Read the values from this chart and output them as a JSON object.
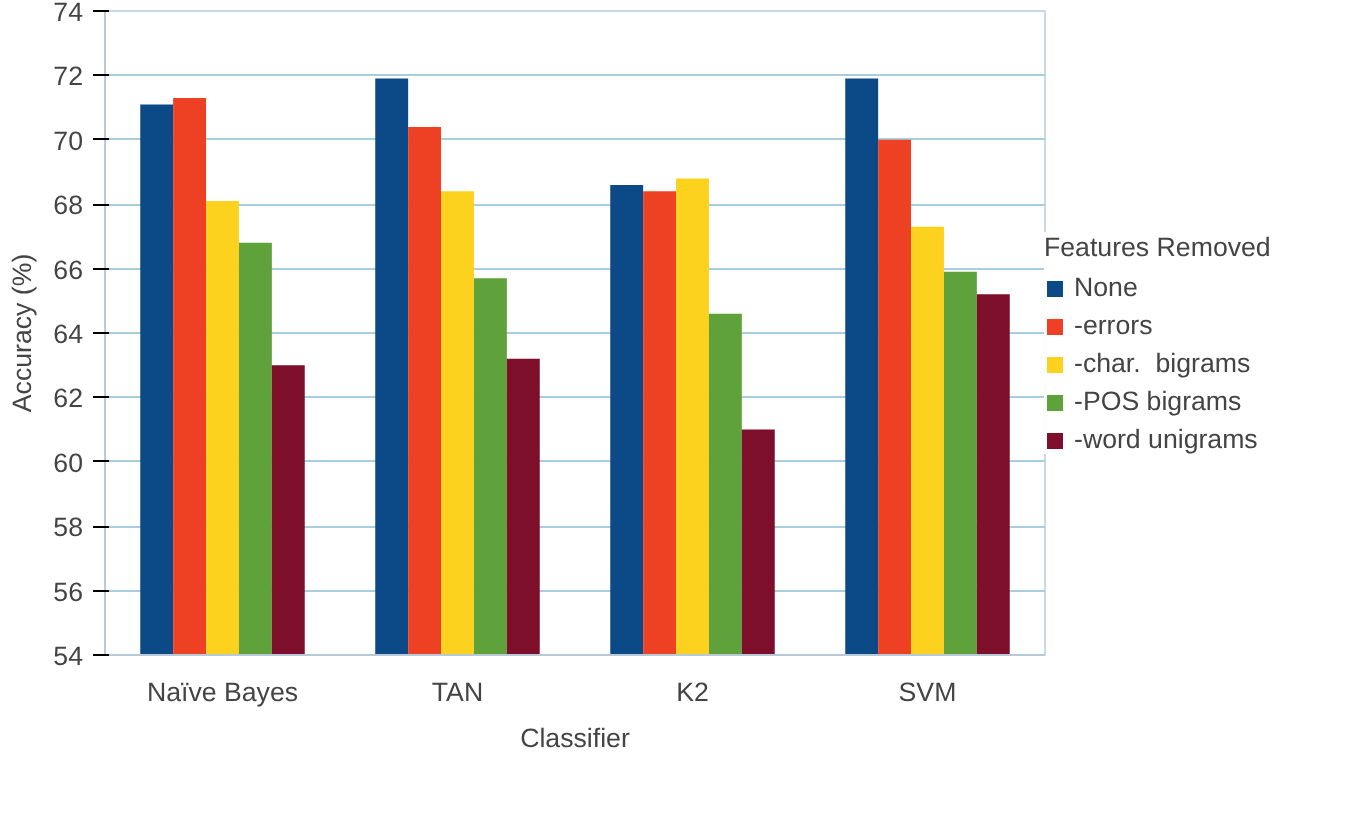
{
  "chart_data": {
    "type": "bar",
    "xlabel": "Classifier",
    "ylabel": "Accuracy (%)",
    "legend_title": "Features Removed",
    "categories": [
      "Naïve Bayes",
      "TAN",
      "K2",
      "SVM"
    ],
    "series": [
      {
        "name": "None",
        "color": "#0b4a86",
        "values": [
          71.1,
          71.9,
          68.6,
          71.9
        ]
      },
      {
        "name": "-errors",
        "color": "#ee4022",
        "values": [
          71.3,
          70.4,
          68.4,
          70.0
        ]
      },
      {
        "name": "-char.  bigrams",
        "color": "#fdd21f",
        "values": [
          68.1,
          68.4,
          68.8,
          67.3
        ]
      },
      {
        "name": "-POS bigrams",
        "color": "#5fa23c",
        "values": [
          66.8,
          65.7,
          64.6,
          65.9
        ]
      },
      {
        "name": "-word unigrams",
        "color": "#7e0f2b",
        "values": [
          63.0,
          63.2,
          61.0,
          65.2
        ]
      }
    ],
    "ylim": [
      54,
      74
    ],
    "yticks": [
      54,
      56,
      58,
      60,
      62,
      64,
      66,
      68,
      70,
      72,
      74
    ],
    "grid": "y",
    "legend": "right"
  }
}
